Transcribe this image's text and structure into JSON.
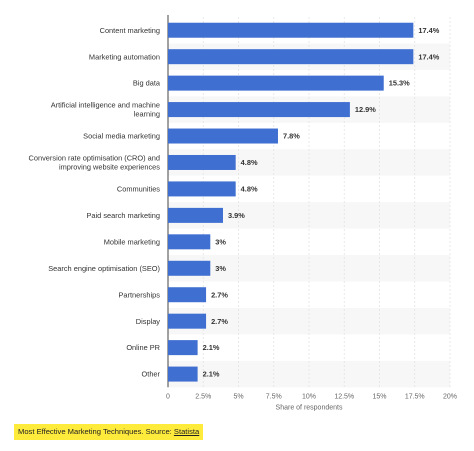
{
  "chart_data": {
    "type": "bar",
    "orientation": "horizontal",
    "categories": [
      "Content marketing",
      "Marketing automation",
      "Big data",
      "Artificial intelligence and machine learning",
      "Social media marketing",
      "Conversion rate optimisation (CRO) and improving website experiences",
      "Communities",
      "Paid search marketing",
      "Mobile marketing",
      "Search engine optimisation (SEO)",
      "Partnerships",
      "Display",
      "Online PR",
      "Other"
    ],
    "category_lines": [
      [
        "Content marketing"
      ],
      [
        "Marketing automation"
      ],
      [
        "Big data"
      ],
      [
        "Artificial intelligence and machine",
        "learning"
      ],
      [
        "Social media marketing"
      ],
      [
        "Conversion rate optimisation (CRO) and",
        "improving website experiences"
      ],
      [
        "Communities"
      ],
      [
        "Paid search marketing"
      ],
      [
        "Mobile marketing"
      ],
      [
        "Search engine optimisation (SEO)"
      ],
      [
        "Partnerships"
      ],
      [
        "Display"
      ],
      [
        "Online PR"
      ],
      [
        "Other"
      ]
    ],
    "values": [
      17.4,
      17.4,
      15.3,
      12.9,
      7.8,
      4.8,
      4.8,
      3.9,
      3,
      3,
      2.7,
      2.7,
      2.1,
      2.1
    ],
    "value_labels": [
      "17.4%",
      "17.4%",
      "15.3%",
      "12.9%",
      "7.8%",
      "4.8%",
      "4.8%",
      "3.9%",
      "3%",
      "3%",
      "2.7%",
      "2.7%",
      "2.1%",
      "2.1%"
    ],
    "xlim": [
      0,
      20
    ],
    "xticks": [
      0,
      2.5,
      5,
      7.5,
      10,
      12.5,
      15,
      17.5,
      20
    ],
    "xtick_labels": [
      "0",
      "2.5%",
      "5%",
      "7.5%",
      "10%",
      "12.5%",
      "15%",
      "17.5%",
      "20%"
    ],
    "xlabel": "Share of respondents",
    "ylabel": "",
    "title": "",
    "grid": "vertical",
    "bar_color": "#3f6fd1",
    "stripe_color": "#f7f7f7"
  },
  "caption": {
    "text": "Most Effective Marketing Techniques. Source: ",
    "link": "Statista",
    "highlight_color": "#ffeb3b"
  }
}
